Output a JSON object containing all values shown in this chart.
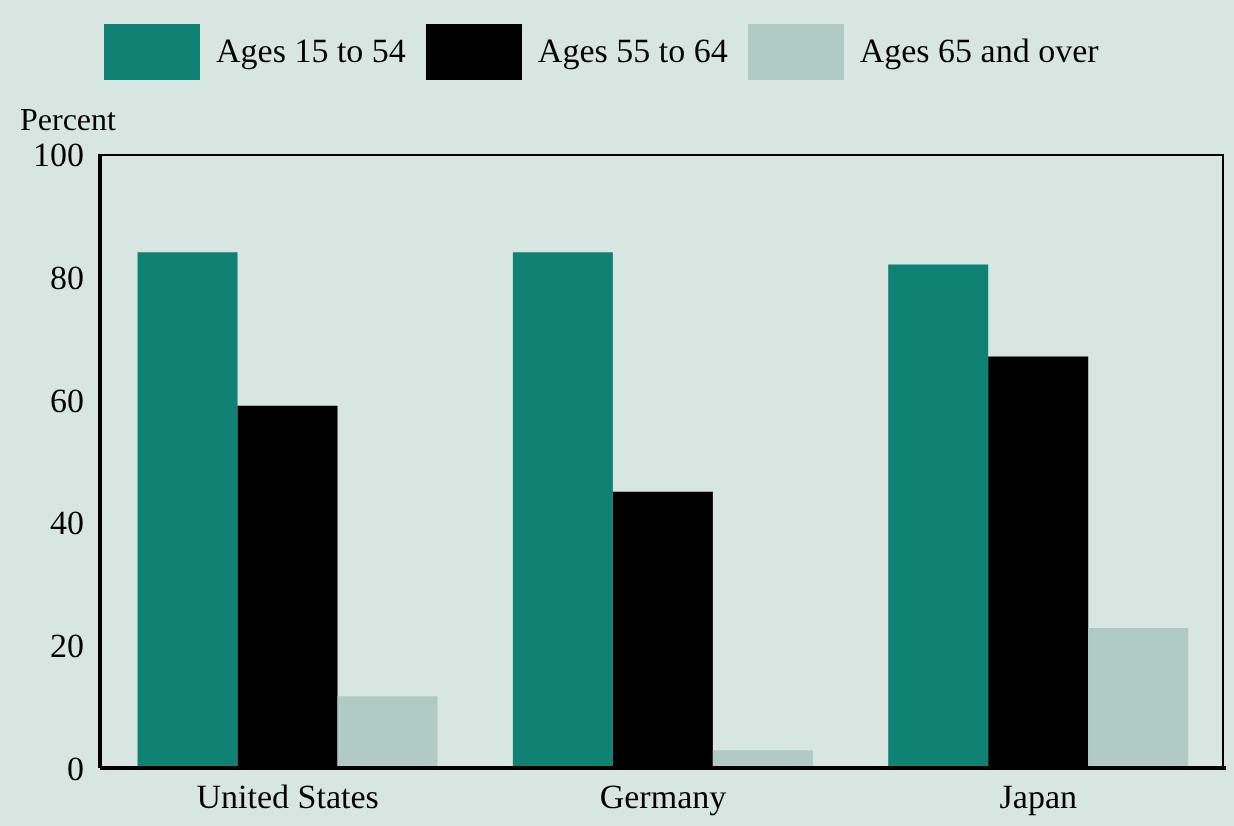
{
  "chart_data": {
    "type": "bar",
    "ylabel": "Percent",
    "categories": [
      "United States",
      "Germany",
      "Japan"
    ],
    "series": [
      {
        "name": "Ages 15 to 54",
        "color": "#0f8274",
        "values": [
          84,
          84,
          82
        ]
      },
      {
        "name": "Ages 55 to 64",
        "color": "#000000",
        "values": [
          59,
          45,
          67
        ]
      },
      {
        "name": "Ages 65 and over",
        "color": "#b0cbc3",
        "values": [
          11.7,
          2.9,
          22.8
        ]
      }
    ],
    "ylim": [
      0,
      100
    ],
    "yticks": [
      0,
      20,
      40,
      60,
      80,
      100
    ],
    "grid": false,
    "legend": "top"
  }
}
